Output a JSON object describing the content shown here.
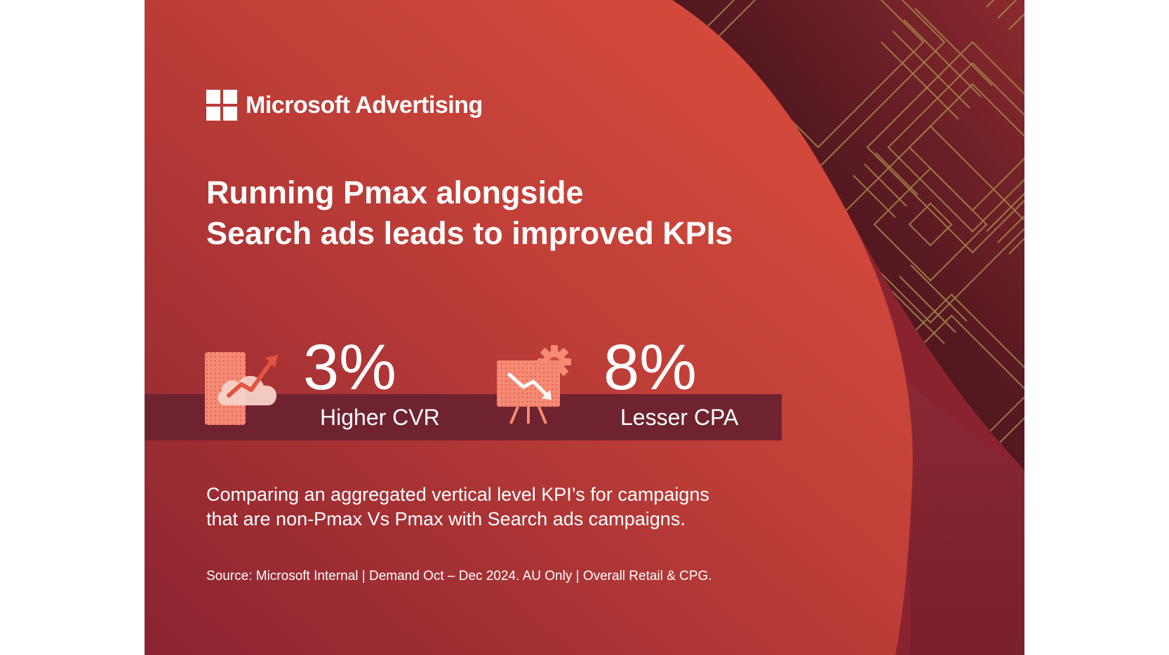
{
  "brand": {
    "name": "Microsoft Advertising",
    "logo_icon": "microsoft-four-squares-logo"
  },
  "headline": {
    "line1": "Running Pmax alongside",
    "line2": "Search ads leads to improved KPIs"
  },
  "stats": [
    {
      "value": "3%",
      "label": "Higher CVR",
      "icon": "cloud-rising-chart-icon"
    },
    {
      "value": "8%",
      "label": "Lesser CPA",
      "icon": "presentation-declining-chart-gear-icon"
    }
  ],
  "description": {
    "line1": "Comparing an aggregated vertical level KPI’s for campaigns",
    "line2": "that are non-Pmax Vs Pmax with Search ads campaigns."
  },
  "source": "Source: Microsoft Internal | Demand Oct – Dec 2024. AU Only | Overall Retail & CPG.",
  "colors": {
    "background_dark": "#8a2330",
    "background_bright": "#d44a3b",
    "pattern_dark": "#3a1018",
    "pattern_line": "#a88a4a",
    "band": "#6f2330",
    "icon_accent": "#f06a56",
    "text": "#ffffff"
  }
}
